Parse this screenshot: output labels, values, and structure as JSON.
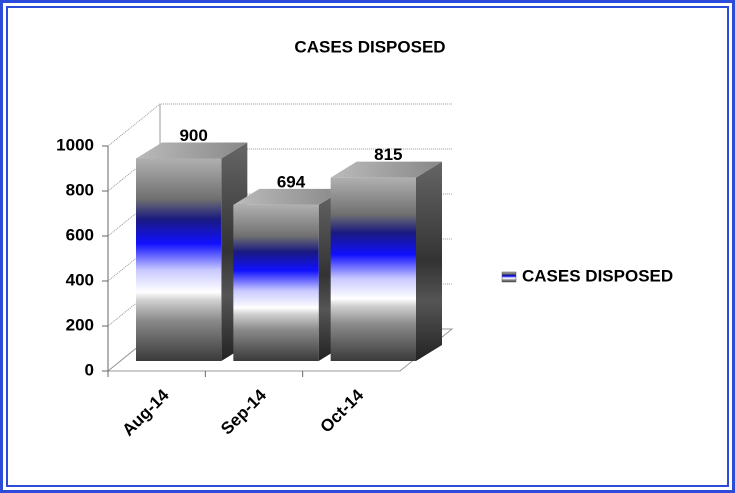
{
  "chart_data": {
    "type": "bar3d",
    "title": "CASES DISPOSED",
    "categories": [
      "Aug-14",
      "Sep-14",
      "Oct-14"
    ],
    "series": [
      {
        "name": "CASES DISPOSED",
        "color": "#1a1aff",
        "values": [
          900,
          694,
          815
        ]
      }
    ],
    "ylim": [
      0,
      1000
    ],
    "yticks": [
      0,
      200,
      400,
      600,
      800,
      1000
    ],
    "grid": true,
    "legend": "right"
  }
}
